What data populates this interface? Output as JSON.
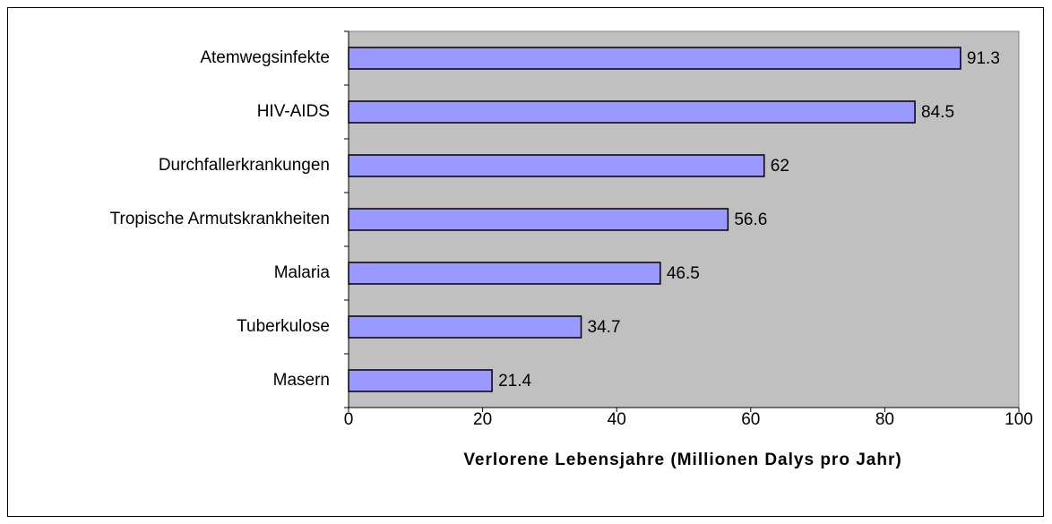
{
  "chart_data": {
    "type": "bar",
    "orientation": "horizontal",
    "categories": [
      "Atemwegsinfekte",
      "HIV-AIDS",
      "Durchfallerkrankungen",
      "Tropische Armutskrankheiten",
      "Malaria",
      "Tuberkulose",
      "Masern"
    ],
    "values": [
      91.3,
      84.5,
      62,
      56.6,
      46.5,
      34.7,
      21.4
    ],
    "color": "#9999ff",
    "xlabel": "Verlorene Lebensjahre (Millionen Dalys pro Jahr)",
    "xlim": [
      0,
      100
    ],
    "xticks": [
      0,
      20,
      40,
      60,
      80,
      100
    ],
    "grid": false
  }
}
